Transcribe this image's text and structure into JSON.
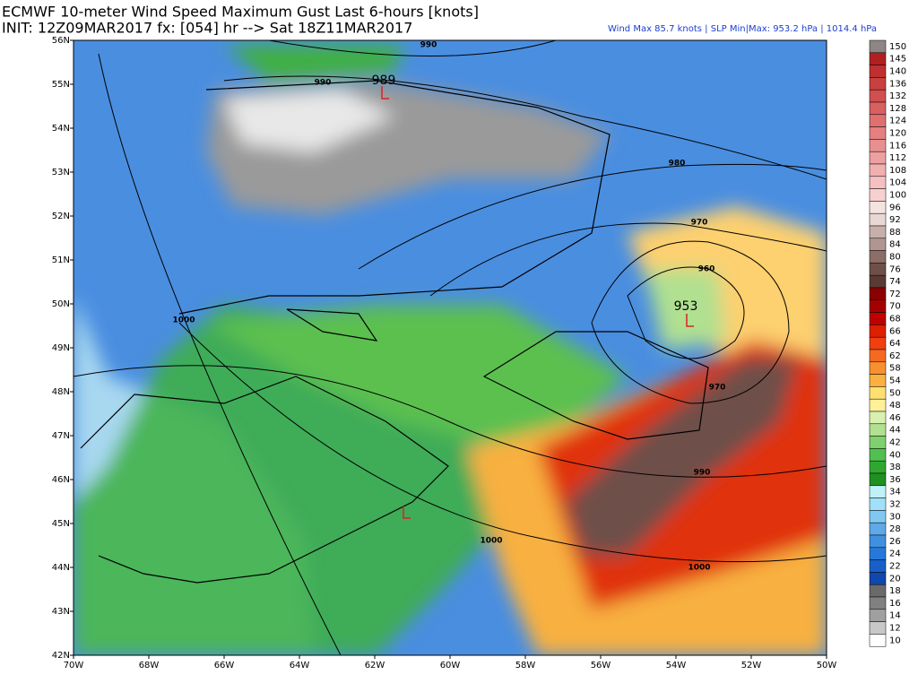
{
  "header": {
    "title": "ECMWF 10-meter Wind Speed Maximum Gust Last 6-hours [knots]",
    "subtitle": "INIT: 12Z09MAR2017 fx: [054] hr --> Sat 18Z11MAR2017",
    "stats": "Wind Max 85.7 knots | SLP Min|Max: 953.2 hPa | 1014.4 hPa"
  },
  "map": {
    "lat_labels": [
      "56N",
      "55N",
      "54N",
      "53N",
      "52N",
      "51N",
      "50N",
      "49N",
      "48N",
      "47N",
      "46N",
      "45N",
      "44N",
      "43N",
      "42N"
    ],
    "lon_labels": [
      "70W",
      "68W",
      "66W",
      "64W",
      "62W",
      "60W",
      "58W",
      "56W",
      "54W",
      "52W",
      "50W"
    ],
    "isobar_labels": [
      "990",
      "990",
      "980",
      "970",
      "960",
      "1000",
      "970",
      "990",
      "1000",
      "1000"
    ],
    "centers": [
      "989",
      "953"
    ]
  },
  "colorbar": {
    "labels": [
      "150",
      "145",
      "140",
      "136",
      "132",
      "128",
      "124",
      "120",
      "116",
      "112",
      "108",
      "104",
      "100",
      "96",
      "92",
      "88",
      "84",
      "80",
      "76",
      "74",
      "72",
      "70",
      "68",
      "66",
      "64",
      "62",
      "58",
      "54",
      "50",
      "48",
      "46",
      "44",
      "42",
      "40",
      "38",
      "36",
      "34",
      "32",
      "30",
      "28",
      "26",
      "24",
      "22",
      "20",
      "18",
      "16",
      "14",
      "12",
      "10"
    ],
    "colors": [
      "#8f8585",
      "#b02020",
      "#c03030",
      "#c84040",
      "#d05050",
      "#d86060",
      "#e07070",
      "#e48080",
      "#e89090",
      "#eca0a0",
      "#f0b0b0",
      "#f4c0c0",
      "#f8d0d0",
      "#f4e4e0",
      "#e8d8d4",
      "#c8b0aa",
      "#b09590",
      "#8c6e66",
      "#6e5048",
      "#5a3a32",
      "#8b0000",
      "#a50000",
      "#c00000",
      "#dd2000",
      "#f04010",
      "#f56a20",
      "#f89030",
      "#fbb040",
      "#fde070",
      "#fff09a",
      "#d8f0b0",
      "#b0e090",
      "#80d070",
      "#50c050",
      "#30a830",
      "#209020",
      "#c0f0f8",
      "#a0e0f8",
      "#80c8f0",
      "#60a8e8",
      "#4090e0",
      "#2878d8",
      "#1860c8",
      "#1048b0",
      "#6a6a6a",
      "#808080",
      "#a0a0a0",
      "#c8c8c8",
      "#ffffff"
    ]
  }
}
